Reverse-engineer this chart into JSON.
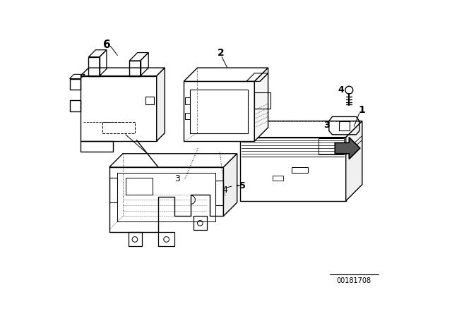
{
  "bg_color": "#ffffff",
  "line_color": "#000000",
  "diagram_id": "00181708",
  "fig_width": 6.4,
  "fig_height": 4.48,
  "dpi": 100
}
